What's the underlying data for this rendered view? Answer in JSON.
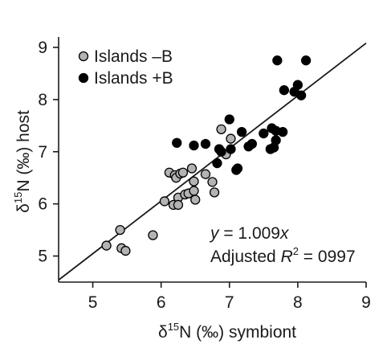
{
  "chart_data": {
    "type": "scatter",
    "xlabel_prefix": "δ",
    "xlabel_sup": "15",
    "xlabel_rest": "N (‰) symbiont",
    "ylabel_prefix": "δ",
    "ylabel_sup": "15",
    "ylabel_rest": "N (‰) host",
    "xlim": [
      4.5,
      9
    ],
    "ylim": [
      4.5,
      9.2
    ],
    "xticks": [
      5,
      6,
      7,
      8,
      9
    ],
    "yticks": [
      5,
      6,
      7,
      8,
      9
    ],
    "legend_position": "top-left",
    "series": [
      {
        "name": "Islands –B",
        "color": "#b3b3b3",
        "points": [
          [
            5.2,
            5.2
          ],
          [
            5.4,
            5.5
          ],
          [
            5.42,
            5.15
          ],
          [
            5.48,
            5.1
          ],
          [
            5.88,
            5.4
          ],
          [
            6.05,
            6.05
          ],
          [
            6.12,
            6.6
          ],
          [
            6.18,
            5.98
          ],
          [
            6.2,
            6.55
          ],
          [
            6.22,
            6.5
          ],
          [
            6.25,
            6.12
          ],
          [
            6.25,
            5.98
          ],
          [
            6.28,
            6.58
          ],
          [
            6.32,
            6.6
          ],
          [
            6.35,
            6.18
          ],
          [
            6.4,
            6.2
          ],
          [
            6.45,
            6.68
          ],
          [
            6.48,
            6.43
          ],
          [
            6.48,
            6.25
          ],
          [
            6.5,
            6.08
          ],
          [
            6.65,
            6.57
          ],
          [
            6.75,
            6.42
          ],
          [
            6.78,
            6.22
          ],
          [
            6.88,
            7.43
          ],
          [
            6.95,
            6.95
          ],
          [
            7.02,
            7.25
          ]
        ]
      },
      {
        "name": "Islands +B",
        "color": "#000000",
        "points": [
          [
            6.23,
            7.17
          ],
          [
            6.48,
            7.12
          ],
          [
            6.65,
            7.15
          ],
          [
            6.82,
            6.78
          ],
          [
            6.85,
            7.05
          ],
          [
            6.88,
            7.0
          ],
          [
            7.0,
            7.62
          ],
          [
            7.02,
            7.05
          ],
          [
            7.1,
            6.65
          ],
          [
            7.12,
            6.68
          ],
          [
            7.18,
            7.38
          ],
          [
            7.28,
            7.1
          ],
          [
            7.33,
            7.15
          ],
          [
            7.5,
            7.35
          ],
          [
            7.6,
            7.05
          ],
          [
            7.62,
            7.45
          ],
          [
            7.65,
            7.08
          ],
          [
            7.68,
            7.4
          ],
          [
            7.68,
            7.22
          ],
          [
            7.7,
            8.75
          ],
          [
            7.78,
            7.38
          ],
          [
            7.8,
            8.18
          ],
          [
            7.95,
            8.15
          ],
          [
            8.0,
            8.28
          ],
          [
            8.05,
            8.08
          ],
          [
            8.12,
            8.75
          ]
        ]
      }
    ],
    "fit_line": {
      "slope": 1.009,
      "intercept": 0
    },
    "annotation_equation_prefix": "y",
    "annotation_equation_rest": " = 1.009",
    "annotation_equation_var": "x",
    "annotation_r2_prefix": "Adjusted ",
    "annotation_r2_var": "R",
    "annotation_r2_sup": "2",
    "annotation_r2_rest": " = 0997"
  }
}
